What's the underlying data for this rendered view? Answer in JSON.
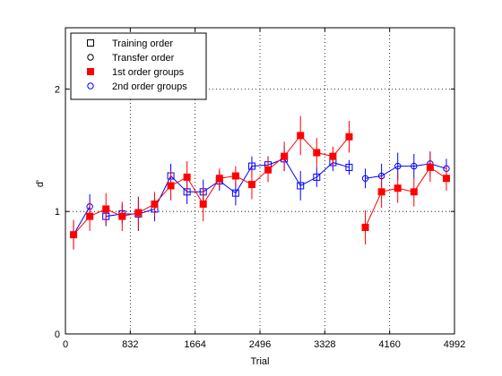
{
  "chart_data": {
    "type": "scatter",
    "xlabel": "Trial",
    "ylabel": "d'",
    "xlim": [
      0,
      4992
    ],
    "ylim": [
      0,
      2.5
    ],
    "xticks": [
      0,
      832,
      1664,
      2496,
      3328,
      4160,
      4992
    ],
    "yticks": [
      0,
      1,
      2
    ],
    "xtick_labels": [
      "0",
      "832",
      "1664",
      "2496",
      "3328",
      "4160",
      "4992"
    ],
    "ytick_labels": [
      "0",
      "1",
      "2"
    ],
    "grid": true,
    "legend_position": "top-left",
    "legend": [
      {
        "label": "Training order",
        "marker": "square",
        "filled": false,
        "color": "#000000"
      },
      {
        "label": "Transfer order",
        "marker": "circle",
        "filled": false,
        "color": "#000000"
      },
      {
        "label": "1st order groups",
        "marker": "square",
        "filled": true,
        "color": "#ff0000"
      },
      {
        "label": "2nd order groups",
        "marker": "circle",
        "filled": false,
        "color": "#0000ff"
      }
    ],
    "series": [
      {
        "name": "1st order groups",
        "color": "#ff0000",
        "marker": "square",
        "filled": true,
        "segments": [
          [
            {
              "x": 104,
              "y": 0.81,
              "err": 0.12
            },
            {
              "x": 312,
              "y": 0.96,
              "err": 0.12
            },
            {
              "x": 520,
              "y": 1.02,
              "err": 0.13
            },
            {
              "x": 728,
              "y": 0.96,
              "err": 0.12
            },
            {
              "x": 936,
              "y": 0.99,
              "err": 0.13
            },
            {
              "x": 1144,
              "y": 1.06,
              "err": 0.1
            },
            {
              "x": 1352,
              "y": 1.21,
              "err": 0.12
            },
            {
              "x": 1560,
              "y": 1.28,
              "err": 0.13
            },
            {
              "x": 1768,
              "y": 1.06,
              "err": 0.14
            },
            {
              "x": 1976,
              "y": 1.27,
              "err": 0.08
            },
            {
              "x": 2184,
              "y": 1.29,
              "err": 0.08
            },
            {
              "x": 2392,
              "y": 1.22,
              "err": 0.12
            },
            {
              "x": 2600,
              "y": 1.34,
              "err": 0.1
            },
            {
              "x": 2808,
              "y": 1.45,
              "err": 0.12
            },
            {
              "x": 3016,
              "y": 1.62,
              "err": 0.16
            },
            {
              "x": 3224,
              "y": 1.48,
              "err": 0.12
            },
            {
              "x": 3432,
              "y": 1.45,
              "err": 0.08
            },
            {
              "x": 3640,
              "y": 1.61,
              "err": 0.13
            }
          ],
          [
            {
              "x": 3848,
              "y": 0.87,
              "err": 0.14
            },
            {
              "x": 4056,
              "y": 1.16,
              "err": 0.13
            },
            {
              "x": 4264,
              "y": 1.19,
              "err": 0.12
            },
            {
              "x": 4472,
              "y": 1.16,
              "err": 0.12
            },
            {
              "x": 4680,
              "y": 1.36,
              "err": 0.12
            },
            {
              "x": 4888,
              "y": 1.27,
              "err": 0.1
            }
          ]
        ]
      },
      {
        "name": "2nd order groups",
        "color": "#0000ff",
        "marker_segments": [
          "circle",
          "square",
          "circle"
        ],
        "filled": false,
        "segments": [
          [
            {
              "x": 104,
              "y": 0.81,
              "err": 0.12
            },
            {
              "x": 312,
              "y": 1.04,
              "err": 0.1
            }
          ],
          [
            {
              "x": 520,
              "y": 0.96,
              "err": 0.08
            },
            {
              "x": 728,
              "y": 0.98,
              "err": 0.08
            },
            {
              "x": 936,
              "y": 0.98,
              "err": 0.14
            },
            {
              "x": 1144,
              "y": 1.02,
              "err": 0.1
            },
            {
              "x": 1352,
              "y": 1.29,
              "err": 0.1
            },
            {
              "x": 1560,
              "y": 1.16,
              "err": 0.1
            },
            {
              "x": 1768,
              "y": 1.16,
              "err": 0.1
            },
            {
              "x": 1976,
              "y": 1.25,
              "err": 0.08
            },
            {
              "x": 2184,
              "y": 1.15,
              "err": 0.1
            },
            {
              "x": 2392,
              "y": 1.37,
              "err": 0.08
            },
            {
              "x": 2600,
              "y": 1.38,
              "err": 0.07
            },
            {
              "x": 2808,
              "y": 1.43,
              "err": 0.1
            },
            {
              "x": 3016,
              "y": 1.21,
              "err": 0.12
            },
            {
              "x": 3224,
              "y": 1.28,
              "err": 0.08
            },
            {
              "x": 3432,
              "y": 1.4,
              "err": 0.07
            },
            {
              "x": 3640,
              "y": 1.36,
              "err": 0.06
            }
          ],
          [
            {
              "x": 3848,
              "y": 1.27,
              "err": 0.08
            },
            {
              "x": 4056,
              "y": 1.29,
              "err": 0.1
            },
            {
              "x": 4264,
              "y": 1.37,
              "err": 0.11
            },
            {
              "x": 4472,
              "y": 1.37,
              "err": 0.1
            },
            {
              "x": 4680,
              "y": 1.39,
              "err": 0.1
            },
            {
              "x": 4888,
              "y": 1.35,
              "err": 0.08
            }
          ]
        ]
      }
    ]
  }
}
